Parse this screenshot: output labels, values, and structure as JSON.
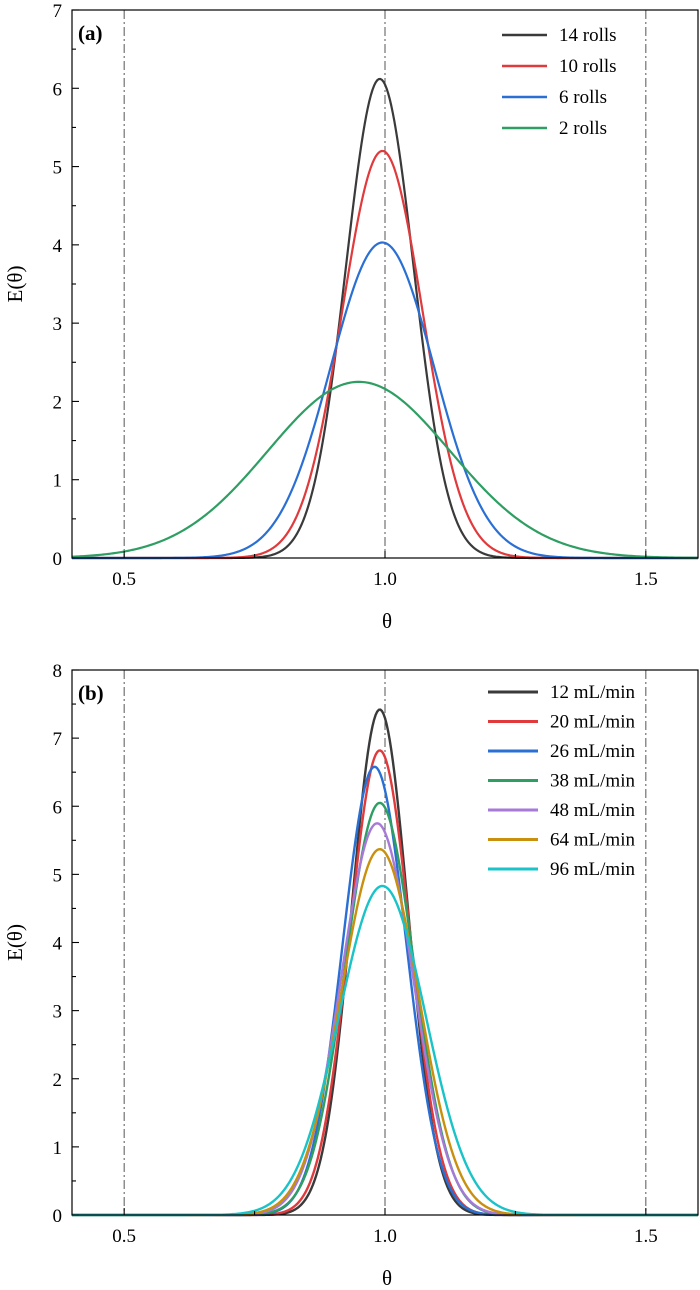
{
  "chart_data": [
    {
      "type": "line",
      "panel_label": "(a)",
      "xlabel": "θ",
      "ylabel": "E(θ)",
      "xlim": [
        0.4,
        1.6
      ],
      "ylim": [
        0,
        7
      ],
      "x_ticks": [
        0.5,
        1.0,
        1.5
      ],
      "x_tick_labels": [
        "0.5",
        "1.0",
        "1.5"
      ],
      "y_ticks": [
        0,
        1,
        2,
        3,
        4,
        5,
        6,
        7
      ],
      "y_tick_labels": [
        "0",
        "1",
        "2",
        "3",
        "4",
        "5",
        "6",
        "7"
      ],
      "reference_lines_x": [
        0.5,
        1.0,
        1.5
      ],
      "legend_position": "top-right",
      "series": [
        {
          "name": "14 rolls",
          "color": "#3a3a3a",
          "peak_x": 0.99,
          "peak_y": 6.12,
          "sigma": 0.065
        },
        {
          "name": "10 rolls",
          "color": "#e03a3c",
          "peak_x": 0.995,
          "peak_y": 5.2,
          "sigma": 0.077
        },
        {
          "name": "6 rolls",
          "color": "#2a6fd4",
          "peak_x": 0.995,
          "peak_y": 4.03,
          "sigma": 0.099
        },
        {
          "name": "2 rolls",
          "color": "#2e9e63",
          "peak_x": 0.95,
          "peak_y": 2.25,
          "sigma": 0.175
        }
      ]
    },
    {
      "type": "line",
      "panel_label": "(b)",
      "xlabel": "θ",
      "ylabel": "E(θ)",
      "xlim": [
        0.4,
        1.6
      ],
      "ylim": [
        0,
        8
      ],
      "x_ticks": [
        0.5,
        1.0,
        1.5
      ],
      "x_tick_labels": [
        "0.5",
        "1.0",
        "1.5"
      ],
      "y_ticks": [
        0,
        1,
        2,
        3,
        4,
        5,
        6,
        7,
        8
      ],
      "y_tick_labels": [
        "0",
        "1",
        "2",
        "3",
        "4",
        "5",
        "6",
        "7",
        "8"
      ],
      "reference_lines_x": [
        0.5,
        1.0,
        1.5
      ],
      "legend_position": "top-right",
      "series": [
        {
          "name": "12 mL/min",
          "color": "#3a3a3a",
          "peak_x": 0.99,
          "peak_y": 7.42,
          "sigma": 0.054
        },
        {
          "name": "20 mL/min",
          "color": "#e03a3c",
          "peak_x": 0.99,
          "peak_y": 6.82,
          "sigma": 0.058
        },
        {
          "name": "26 mL/min",
          "color": "#2a6fd4",
          "peak_x": 0.98,
          "peak_y": 6.58,
          "sigma": 0.061
        },
        {
          "name": "38 mL/min",
          "color": "#2e9e63",
          "peak_x": 0.99,
          "peak_y": 6.05,
          "sigma": 0.066
        },
        {
          "name": "48 mL/min",
          "color": "#a77ad8",
          "peak_x": 0.985,
          "peak_y": 5.75,
          "sigma": 0.069
        },
        {
          "name": "64 mL/min",
          "color": "#c8900e",
          "peak_x": 0.99,
          "peak_y": 5.37,
          "sigma": 0.074
        },
        {
          "name": "96 mL/min",
          "color": "#19c3c8",
          "peak_x": 0.995,
          "peak_y": 4.83,
          "sigma": 0.083
        }
      ]
    }
  ]
}
